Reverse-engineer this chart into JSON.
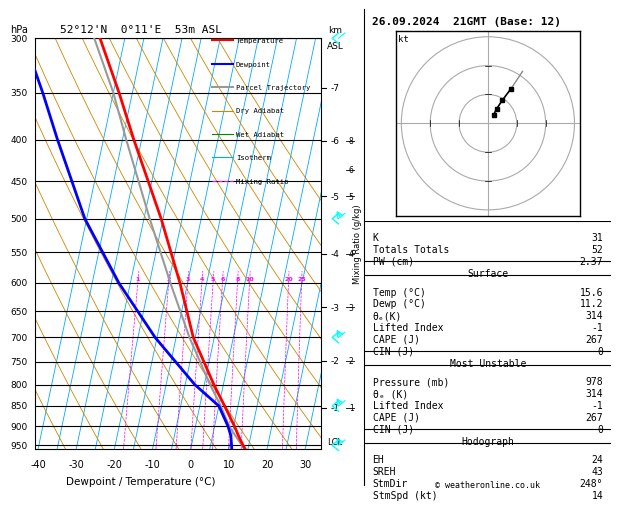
{
  "title_left": "52°12'N  0°11'E  53m ASL",
  "title_right": "26.09.2024  21GMT (Base: 12)",
  "xlabel": "Dewpoint / Temperature (°C)",
  "ylabel_left": "hPa",
  "copyright": "© weatheronline.co.uk",
  "xlim": [
    -40,
    35
  ],
  "xticks": [
    -40,
    -30,
    -20,
    -10,
    0,
    10,
    20,
    30
  ],
  "pressure_levels": [
    300,
    350,
    400,
    450,
    500,
    550,
    600,
    650,
    700,
    750,
    800,
    850,
    900,
    950
  ],
  "pressure_min": 300,
  "pressure_max": 960,
  "isotherm_temps": [
    -40,
    -35,
    -30,
    -25,
    -20,
    -15,
    -10,
    -5,
    0,
    5,
    10,
    15,
    20,
    25,
    30,
    35
  ],
  "dry_adiabat_base_temps": [
    -40,
    -30,
    -20,
    -10,
    0,
    10,
    20,
    30,
    40,
    50,
    60,
    70,
    80,
    90
  ],
  "wet_adiabat_base_temps": [
    -15,
    -10,
    -5,
    0,
    5,
    10,
    15,
    20,
    25,
    30
  ],
  "mixing_ratio_lines": [
    1,
    2,
    3,
    4,
    5,
    6,
    8,
    10,
    20,
    25
  ],
  "temperature_profile": {
    "pressure": [
      978,
      950,
      925,
      900,
      850,
      800,
      700,
      600,
      500,
      400,
      350,
      300
    ],
    "temp": [
      15.6,
      13.5,
      11.8,
      10.2,
      6.5,
      2.5,
      -5.5,
      -12.0,
      -20.5,
      -32.0,
      -38.5,
      -46.5
    ]
  },
  "dewpoint_profile": {
    "pressure": [
      978,
      950,
      925,
      900,
      850,
      800,
      700,
      600,
      500,
      400,
      350,
      300
    ],
    "temp": [
      11.2,
      10.5,
      9.8,
      8.5,
      5.0,
      -2.5,
      -15.5,
      -28.0,
      -40.5,
      -52.0,
      -58.5,
      -66.5
    ]
  },
  "parcel_profile": {
    "pressure": [
      978,
      950,
      925,
      900,
      850,
      800,
      700,
      600,
      500,
      400,
      350,
      300
    ],
    "temp": [
      15.6,
      13.2,
      11.0,
      8.8,
      5.5,
      1.5,
      -6.5,
      -14.5,
      -23.5,
      -34.0,
      -40.0,
      -48.0
    ]
  },
  "lcl_pressure": 940,
  "colors": {
    "temperature": "#ff0000",
    "dewpoint": "#0000ff",
    "parcel": "#999999",
    "dry_adiabat": "#cc8800",
    "wet_adiabat": "#008800",
    "isotherm": "#00aaff",
    "mixing_ratio": "#ff00ff",
    "background": "#ffffff"
  },
  "km_asl": {
    "7": 0.88,
    "6": 0.75,
    "5": 0.615,
    "4": 0.475,
    "3": 0.345,
    "2": 0.215,
    "1": 0.1
  },
  "wind_barbs_pressure": [
    950,
    850,
    700,
    500,
    300
  ],
  "stats_K": 31,
  "stats_TT": 52,
  "stats_PW": 2.37,
  "stats_surf_temp": 15.6,
  "stats_surf_dewp": 11.2,
  "stats_surf_thetae": 314,
  "stats_surf_li": -1,
  "stats_surf_cape": 267,
  "stats_surf_cin": 0,
  "stats_mu_pres": 978,
  "stats_mu_thetae": 314,
  "stats_mu_li": -1,
  "stats_mu_cape": 267,
  "stats_mu_cin": 0,
  "stats_eh": 24,
  "stats_sreh": 43,
  "stats_stmdir": "248°",
  "stats_stmspd": 14,
  "skew_factor": 45.0
}
